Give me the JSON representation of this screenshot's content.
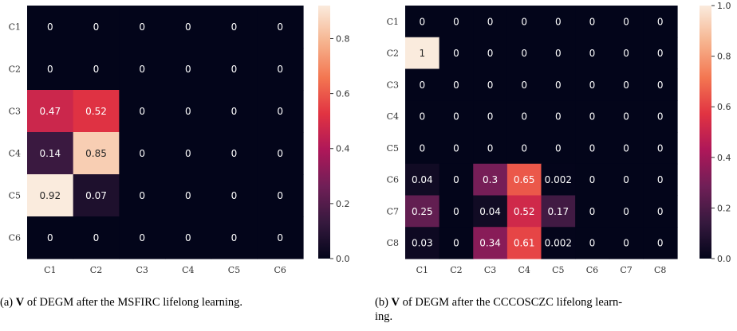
{
  "colors": {
    "scale": [
      "#03051a",
      "#36193e",
      "#701f57",
      "#ae1759",
      "#e13342",
      "#f37651",
      "#f6b48f",
      "#faebdd"
    ],
    "cbar_tick": "#333333"
  },
  "chart_data": [
    {
      "type": "heatmap",
      "title": "",
      "xlabel": "",
      "ylabel": "",
      "x_categories": [
        "C1",
        "C2",
        "C3",
        "C4",
        "C5",
        "C6"
      ],
      "y_categories": [
        "C1",
        "C2",
        "C3",
        "C4",
        "C5",
        "C6"
      ],
      "values": [
        [
          0,
          0,
          0,
          0,
          0,
          0
        ],
        [
          0,
          0,
          0,
          0,
          0,
          0
        ],
        [
          0.47,
          0.52,
          0,
          0,
          0,
          0
        ],
        [
          0.14,
          0.85,
          0,
          0,
          0,
          0
        ],
        [
          0.92,
          0.07,
          0,
          0,
          0,
          0
        ],
        [
          0,
          0,
          0,
          0,
          0,
          0
        ]
      ],
      "labels": [
        [
          "0",
          "0",
          "0",
          "0",
          "0",
          "0"
        ],
        [
          "0",
          "0",
          "0",
          "0",
          "0",
          "0"
        ],
        [
          "0.47",
          "0.52",
          "0",
          "0",
          "0",
          "0"
        ],
        [
          "0.14",
          "0.85",
          "0",
          "0",
          "0",
          "0"
        ],
        [
          "0.92",
          "0.07",
          "0",
          "0",
          "0",
          "0"
        ],
        [
          "0",
          "0",
          "0",
          "0",
          "0",
          "0"
        ]
      ],
      "vmin": 0,
      "vmax": 0.92,
      "colorbar_ticks": [
        0.0,
        0.2,
        0.4,
        0.6,
        0.8
      ],
      "colorbar_tick_labels": [
        "0.0",
        "0.2",
        "0.4",
        "0.6",
        "0.8"
      ],
      "grid": false,
      "legend": "colorbar-right"
    },
    {
      "type": "heatmap",
      "title": "",
      "xlabel": "",
      "ylabel": "",
      "x_categories": [
        "C1",
        "C2",
        "C3",
        "C4",
        "C5",
        "C6",
        "C7",
        "C8"
      ],
      "y_categories": [
        "C1",
        "C2",
        "C3",
        "C4",
        "C5",
        "C6",
        "C7",
        "C8"
      ],
      "values": [
        [
          0,
          0,
          0,
          0,
          0,
          0,
          0,
          0
        ],
        [
          1,
          0,
          0,
          0,
          0,
          0,
          0,
          0
        ],
        [
          0,
          0,
          0,
          0,
          0,
          0,
          0,
          0
        ],
        [
          0,
          0,
          0,
          0,
          0,
          0,
          0,
          0
        ],
        [
          0,
          0,
          0,
          0,
          0,
          0,
          0,
          0
        ],
        [
          0.04,
          0,
          0.3,
          0.65,
          0.002,
          0,
          0,
          0
        ],
        [
          0.25,
          0,
          0.04,
          0.52,
          0.17,
          0,
          0,
          0
        ],
        [
          0.03,
          0,
          0.34,
          0.61,
          0.002,
          0,
          0,
          0
        ]
      ],
      "labels": [
        [
          "0",
          "0",
          "0",
          "0",
          "0",
          "0",
          "0",
          "0"
        ],
        [
          "1",
          "0",
          "0",
          "0",
          "0",
          "0",
          "0",
          "0"
        ],
        [
          "0",
          "0",
          "0",
          "0",
          "0",
          "0",
          "0",
          "0"
        ],
        [
          "0",
          "0",
          "0",
          "0",
          "0",
          "0",
          "0",
          "0"
        ],
        [
          "0",
          "0",
          "0",
          "0",
          "0",
          "0",
          "0",
          "0"
        ],
        [
          "0.04",
          "0",
          "0.3",
          "0.65",
          "0.002",
          "0",
          "0",
          "0"
        ],
        [
          "0.25",
          "0",
          "0.04",
          "0.52",
          "0.17",
          "0",
          "0",
          "0"
        ],
        [
          "0.03",
          "0",
          "0.34",
          "0.61",
          "0.002",
          "0",
          "0",
          "0"
        ]
      ],
      "vmin": 0,
      "vmax": 1.0,
      "colorbar_ticks": [
        0.0,
        0.2,
        0.4,
        0.6,
        0.8,
        1.0
      ],
      "colorbar_tick_labels": [
        "0.0",
        "0.2",
        "0.4",
        "0.6",
        "0.8",
        "1.0"
      ],
      "grid": false,
      "legend": "colorbar-right"
    }
  ],
  "captions": {
    "a": {
      "prefix": "(a) ",
      "symbol": "V",
      "text": " of DEGM after the MSFIRC lifelong learning."
    },
    "b": {
      "prefix": "(b) ",
      "symbol": "V",
      "text": " of DEGM after the CCCOSCZC lifelong learn-",
      "continuation": "ing."
    }
  }
}
